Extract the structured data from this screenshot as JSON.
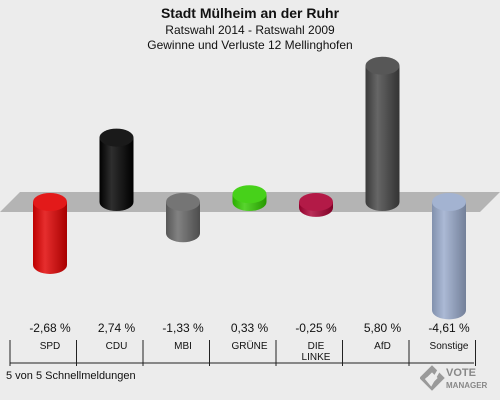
{
  "chart_data": {
    "type": "bar",
    "title": "Stadt Mülheim an der Ruhr",
    "subtitle": "Ratswahl 2014 - Ratswahl 2009",
    "subtitle2": "Gewinne und Verluste 12 Mellinghofen",
    "categories": [
      "SPD",
      "CDU",
      "MBI",
      "GRÜNE",
      "DIE LINKE",
      "AfD",
      "Sonstige"
    ],
    "values": [
      -2.68,
      2.74,
      -1.33,
      0.33,
      -0.25,
      5.8,
      -4.61
    ],
    "value_labels": [
      "-2,68 %",
      "2,74 %",
      "-1,33 %",
      "0,33 %",
      "-0,25 %",
      "5,80 %",
      "-4,61 %"
    ],
    "colors": [
      "#e00000",
      "#000000",
      "#666666",
      "#33cc00",
      "#aa0033",
      "#444444",
      "#99aacc"
    ],
    "ylim": [
      -4.61,
      5.8
    ]
  },
  "footer": "5 von 5 Schnellmeldungen",
  "logo": "VOTE MANAGER"
}
